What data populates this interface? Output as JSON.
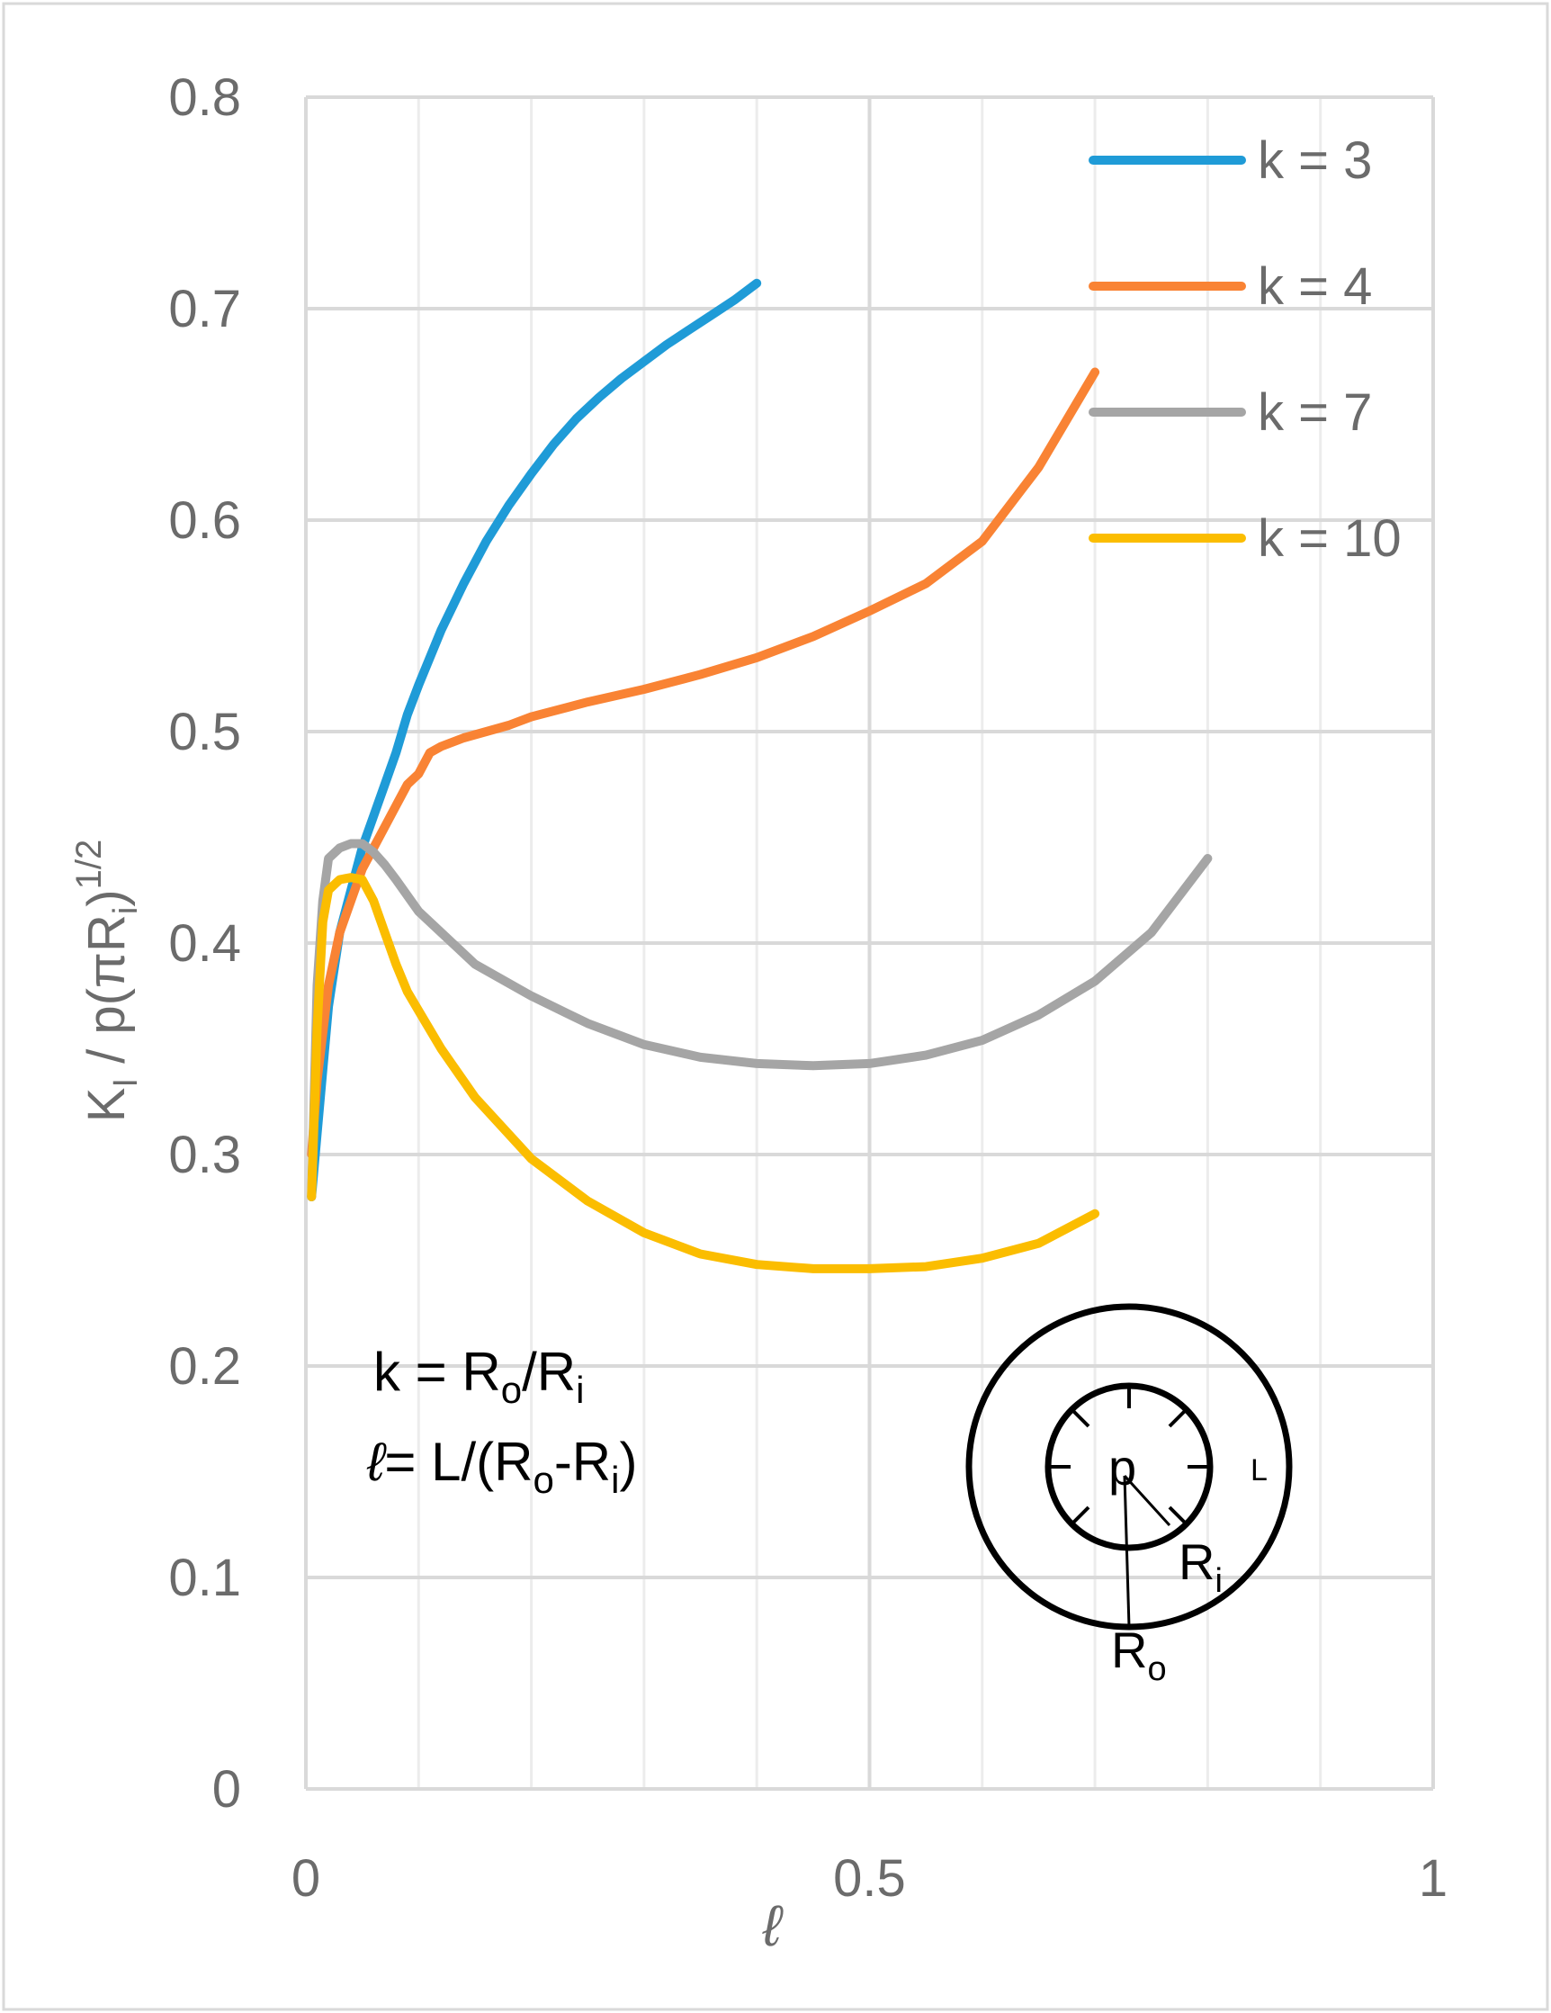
{
  "chart_data": {
    "type": "line",
    "title": "",
    "xlabel": "ℓ",
    "ylabel_parts": {
      "K": "K",
      "sub_i": "I",
      "mid": " / p(πR",
      "sub_r": "i",
      "close": ")",
      "sup": "1/2"
    },
    "xlim": [
      0,
      1
    ],
    "ylim": [
      0,
      0.8
    ],
    "x_ticks": [
      0,
      0.5,
      1
    ],
    "x_tick_labels": [
      "0",
      "0.5",
      "1"
    ],
    "y_ticks": [
      0,
      0.1,
      0.2,
      0.3,
      0.4,
      0.5,
      0.6,
      0.7,
      0.8
    ],
    "y_tick_labels": [
      "0",
      "0.1",
      "0.2",
      "0.3",
      "0.4",
      "0.5",
      "0.6",
      "0.7",
      "0.8"
    ],
    "minor_x_gridlines": [
      0.1,
      0.2,
      0.3,
      0.4,
      0.6,
      0.7,
      0.8,
      0.9
    ],
    "grid": true,
    "legend_position": "top-right",
    "series": [
      {
        "name": "k = 3",
        "color": "#1f9bd7",
        "x": [
          0.005,
          0.01,
          0.02,
          0.03,
          0.04,
          0.05,
          0.06,
          0.07,
          0.08,
          0.09,
          0.1,
          0.12,
          0.14,
          0.16,
          0.18,
          0.2,
          0.22,
          0.24,
          0.26,
          0.28,
          0.3,
          0.32,
          0.34,
          0.36,
          0.38,
          0.4
        ],
        "y": [
          0.28,
          0.31,
          0.37,
          0.405,
          0.425,
          0.445,
          0.46,
          0.475,
          0.49,
          0.508,
          0.522,
          0.548,
          0.57,
          0.59,
          0.607,
          0.622,
          0.636,
          0.648,
          0.658,
          0.667,
          0.675,
          0.683,
          0.69,
          0.697,
          0.704,
          0.712
        ]
      },
      {
        "name": "k = 4",
        "color": "#f98334",
        "x": [
          0.005,
          0.01,
          0.02,
          0.03,
          0.04,
          0.05,
          0.06,
          0.07,
          0.08,
          0.09,
          0.1,
          0.11,
          0.12,
          0.14,
          0.16,
          0.18,
          0.2,
          0.25,
          0.3,
          0.35,
          0.4,
          0.45,
          0.5,
          0.55,
          0.6,
          0.65,
          0.7
        ],
        "y": [
          0.3,
          0.335,
          0.38,
          0.405,
          0.42,
          0.435,
          0.445,
          0.455,
          0.465,
          0.475,
          0.48,
          0.49,
          0.493,
          0.497,
          0.5,
          0.503,
          0.507,
          0.514,
          0.52,
          0.527,
          0.535,
          0.545,
          0.557,
          0.57,
          0.59,
          0.625,
          0.67
        ]
      },
      {
        "name": "k = 7",
        "color": "#a5a5a5",
        "x": [
          0.005,
          0.01,
          0.015,
          0.02,
          0.03,
          0.04,
          0.05,
          0.06,
          0.07,
          0.08,
          0.1,
          0.12,
          0.15,
          0.2,
          0.25,
          0.3,
          0.35,
          0.4,
          0.45,
          0.5,
          0.55,
          0.6,
          0.65,
          0.7,
          0.75,
          0.8
        ],
        "y": [
          0.28,
          0.38,
          0.42,
          0.44,
          0.445,
          0.447,
          0.447,
          0.443,
          0.437,
          0.43,
          0.415,
          0.405,
          0.39,
          0.375,
          0.362,
          0.352,
          0.346,
          0.343,
          0.342,
          0.343,
          0.347,
          0.354,
          0.366,
          0.382,
          0.405,
          0.44
        ]
      },
      {
        "name": "k = 10",
        "color": "#fbbd00",
        "x": [
          0.005,
          0.01,
          0.015,
          0.02,
          0.03,
          0.04,
          0.05,
          0.06,
          0.07,
          0.08,
          0.09,
          0.1,
          0.12,
          0.15,
          0.2,
          0.25,
          0.3,
          0.35,
          0.4,
          0.45,
          0.5,
          0.55,
          0.6,
          0.65,
          0.7
        ],
        "y": [
          0.28,
          0.36,
          0.41,
          0.425,
          0.43,
          0.431,
          0.43,
          0.42,
          0.405,
          0.39,
          0.377,
          0.368,
          0.35,
          0.327,
          0.298,
          0.278,
          0.263,
          0.253,
          0.248,
          0.246,
          0.246,
          0.247,
          0.251,
          0.258,
          0.272
        ]
      }
    ]
  },
  "annotation": {
    "k_lhs": "k = R",
    "k_sub_o": "o",
    "k_slash": "/R",
    "k_sub_i": "i",
    "l_lhs": "ℓ",
    "l_rest": "= L/(R",
    "l_sub_o": "o",
    "l_dash": "-R",
    "l_sub_i": "i",
    "l_close": ")"
  },
  "inset": {
    "pressure_label": "p",
    "crack_label": "L",
    "ri_label": "R",
    "ri_sub": "i",
    "ro_label": "R",
    "ro_sub": "o"
  }
}
